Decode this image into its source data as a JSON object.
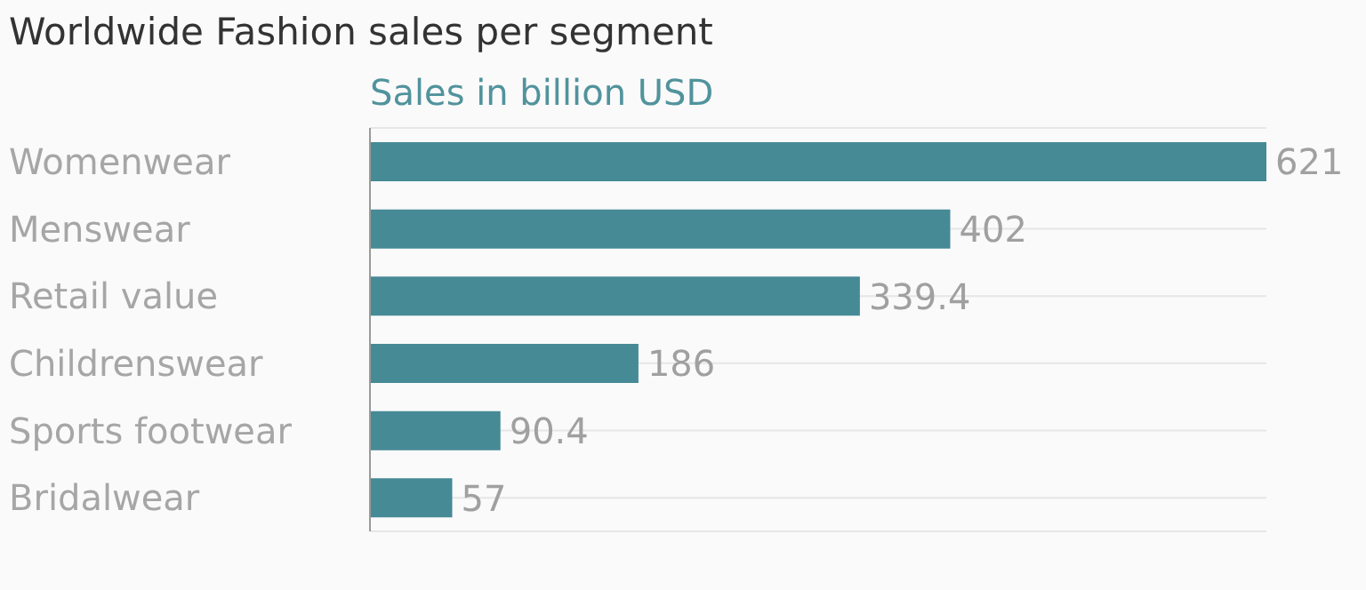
{
  "chart_data": {
    "type": "bar",
    "orientation": "horizontal",
    "title": "Worldwide Fashion sales per segment",
    "subtitle": "Sales in billion USD",
    "categories": [
      "Womenwear",
      "Menswear",
      "Retail value",
      "Childrenswear",
      "Sports footwear",
      "Bridalwear"
    ],
    "values": [
      621,
      402,
      339.4,
      186,
      90.4,
      57
    ],
    "color": "#468a96",
    "data_labels": true,
    "grid": "y",
    "tick_labels": "y"
  }
}
